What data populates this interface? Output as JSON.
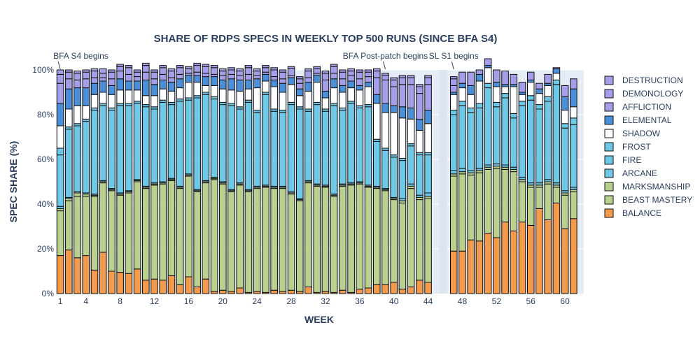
{
  "chart_data": {
    "type": "bar",
    "stacked": true,
    "title": "SHARE OF RDPS SPECS IN WEEKLY TOP 500 RUNS (SINCE BFA S4)",
    "xlabel": "WEEK",
    "ylabel": "SPEC SHARE (%)",
    "ylim": [
      0,
      100
    ],
    "y_tick_labels": [
      "0%",
      "20%",
      "40%",
      "60%",
      "80%",
      "100%"
    ],
    "x_tick_values": [
      1,
      4,
      8,
      12,
      16,
      20,
      24,
      28,
      32,
      36,
      40,
      44,
      48,
      52,
      56,
      60
    ],
    "x_tick_labels": [
      "1",
      "4",
      "8",
      "12",
      "16",
      "20",
      "24",
      "28",
      "32",
      "36",
      "40",
      "44",
      "48",
      "52",
      "56",
      "60"
    ],
    "x": [
      1,
      2,
      3,
      4,
      5,
      6,
      7,
      8,
      9,
      10,
      11,
      12,
      13,
      14,
      15,
      16,
      17,
      18,
      19,
      20,
      21,
      22,
      23,
      24,
      25,
      26,
      27,
      28,
      29,
      30,
      31,
      32,
      33,
      34,
      35,
      36,
      37,
      38,
      39,
      40,
      41,
      42,
      43,
      44,
      47,
      48,
      49,
      50,
      51,
      52,
      53,
      54,
      55,
      56,
      57,
      58,
      59,
      60,
      61
    ],
    "grid": true,
    "legend_position": "right",
    "annotations": [
      {
        "text": "BFA S4 begins",
        "x": 1
      },
      {
        "text": "BFA Post-patch begins",
        "x": 39
      },
      {
        "text": "SL S1 begins",
        "x": 47
      }
    ],
    "series": [
      {
        "name": "BALANCE",
        "color": "#f39a4d",
        "values": [
          17,
          19.5,
          16,
          17,
          10.5,
          18.5,
          10,
          9.5,
          9,
          11,
          6,
          6.5,
          6,
          8,
          4,
          7.5,
          3,
          6.5,
          1,
          1.5,
          1,
          2.5,
          0.5,
          1,
          0.5,
          1.5,
          1,
          1.5,
          1,
          3,
          0.5,
          1,
          0.5,
          1.5,
          0.5,
          2,
          2.5,
          4,
          4,
          5,
          2,
          3,
          6,
          5,
          19,
          19,
          24,
          23.5,
          27,
          25,
          32,
          28,
          32,
          30.5,
          38,
          33,
          40.5,
          29,
          33.5
        ]
      },
      {
        "name": "BEAST MASTERY",
        "color": "#b9d08f",
        "values": [
          20,
          22,
          27.5,
          26.5,
          33,
          31,
          36,
          34.5,
          36,
          39,
          41,
          42,
          43,
          42.5,
          43,
          45,
          42.5,
          43,
          50,
          47.5,
          44.5,
          46,
          45,
          46,
          47,
          45.5,
          46,
          43,
          40.5,
          46.5,
          47.5,
          46.5,
          43,
          46.5,
          48,
          47,
          45,
          43,
          42,
          37,
          38.5,
          44,
          36,
          37.5,
          33.5,
          34.5,
          29,
          30.5,
          28.5,
          31,
          23.5,
          26.5,
          18,
          17,
          9.5,
          16,
          7,
          15,
          12
        ]
      },
      {
        "name": "MARKSMANSHIP",
        "color": "#b9d08f",
        "values": [
          1,
          1,
          1.5,
          1,
          0.5,
          0.5,
          0.5,
          0.5,
          0.5,
          0.5,
          0.5,
          0.5,
          0.5,
          0.5,
          0.5,
          0.5,
          0.5,
          0.5,
          0.5,
          0.5,
          0.5,
          0.5,
          0.5,
          0.5,
          0.5,
          0.5,
          0.5,
          0.5,
          0.5,
          0.5,
          0.5,
          0.5,
          0.5,
          0.5,
          0.5,
          0.5,
          0.5,
          0.5,
          0.5,
          0.5,
          1,
          1,
          1,
          1,
          1,
          1,
          1,
          1,
          1,
          1,
          1,
          1,
          1,
          1,
          1,
          1,
          1,
          1,
          1
        ]
      },
      {
        "name": "ARCANE",
        "color": "#6fc8e6",
        "values": [
          1,
          0.5,
          0.5,
          0.5,
          0.5,
          0.5,
          0.5,
          0.5,
          0.5,
          0.5,
          0.5,
          0.5,
          0.5,
          0.5,
          0.5,
          0.5,
          0.5,
          0.5,
          0.5,
          0.5,
          0.5,
          0.5,
          0.5,
          0.5,
          0.5,
          0.5,
          0.5,
          0.5,
          0.5,
          0.5,
          0.5,
          0.5,
          0.5,
          0.5,
          0.5,
          0.5,
          0.5,
          0.5,
          0.5,
          0.5,
          1,
          1,
          1,
          1.5,
          1.5,
          1.5,
          1,
          1,
          1,
          1,
          1,
          1,
          1,
          1,
          1,
          1,
          1,
          1,
          1
        ]
      },
      {
        "name": "FIRE",
        "color": "#6fc8e6",
        "values": [
          23,
          30.5,
          29.5,
          32,
          37.5,
          33.5,
          35,
          39,
          38,
          34,
          35.5,
          33,
          35.5,
          33,
          38,
          33,
          41,
          38.5,
          35,
          34.5,
          37.5,
          33,
          39,
          33,
          40.5,
          33.5,
          33,
          39,
          40,
          31,
          35.5,
          33,
          39.5,
          33,
          35.5,
          33,
          35,
          20,
          17,
          18,
          17,
          17,
          18,
          17,
          25,
          28,
          26,
          27,
          34.5,
          25.5,
          30,
          22,
          32,
          37,
          33,
          35,
          44,
          28,
          28
        ]
      },
      {
        "name": "FROST",
        "color": "#6fc8e6",
        "values": [
          3,
          1,
          1,
          1,
          1,
          1,
          1,
          1,
          1,
          1,
          1,
          1,
          1,
          1,
          1,
          1,
          1,
          1,
          1,
          1,
          1,
          1,
          1,
          1,
          1,
          1,
          1,
          1,
          1,
          1,
          1,
          1,
          1,
          1,
          1,
          1,
          1,
          1,
          1,
          1,
          1,
          1,
          1,
          1,
          2,
          2,
          2,
          2,
          2,
          2,
          2,
          2,
          2,
          2,
          2,
          2,
          2,
          2,
          3
        ]
      },
      {
        "name": "SHADOW",
        "color": "#ffffff",
        "values": [
          10,
          8,
          8,
          6,
          6,
          5,
          6,
          6,
          6,
          5,
          4,
          5,
          5,
          5,
          5,
          7,
          6,
          3,
          5,
          6,
          6,
          7,
          5,
          10,
          5,
          10,
          8,
          8,
          5,
          8,
          9,
          5,
          7,
          7,
          6,
          7,
          8,
          16,
          16,
          19,
          18,
          11,
          10,
          13,
          7,
          6,
          6,
          10,
          7,
          7,
          3,
          12,
          3,
          6,
          5,
          5,
          3,
          6,
          5
        ]
      },
      {
        "name": "ELEMENTAL",
        "color": "#4a8fd8",
        "values": [
          10,
          9,
          8,
          8,
          5,
          5,
          4,
          5,
          4,
          4,
          7,
          5,
          4,
          4,
          4,
          3,
          3,
          4,
          4,
          4,
          5,
          5,
          4,
          4,
          3,
          3,
          4,
          3,
          3,
          4,
          3,
          3,
          4,
          3,
          3,
          2,
          2,
          4,
          4,
          3,
          5,
          5,
          5,
          6,
          1,
          2,
          4,
          3,
          1,
          2,
          1,
          1,
          1,
          1,
          2,
          1,
          2,
          6,
          8
        ]
      },
      {
        "name": "AFFLICTION",
        "color": "#a59ee8",
        "values": [
          9,
          4.5,
          3.5,
          4,
          2.5,
          1.5,
          3,
          3.5,
          3,
          2,
          3.5,
          2.5,
          2.5,
          2,
          2,
          1,
          1.5,
          1.5,
          1,
          2,
          2,
          2,
          2.5,
          1.5,
          1,
          1.5,
          2,
          1,
          2.5,
          2,
          1,
          5,
          2.5,
          3,
          2.5,
          3,
          2.5,
          7.5,
          10.5,
          8.5,
          10,
          10.5,
          11.5,
          11.5,
          3,
          5,
          6,
          2,
          3,
          5.5,
          6,
          4.5,
          4.5,
          3.5,
          2.5,
          4,
          0.5,
          5,
          4.5
        ]
      },
      {
        "name": "DEMONOLOGY",
        "color": "#a59ee8",
        "values": [
          4,
          3,
          3,
          3,
          3,
          2,
          3,
          2,
          3,
          2,
          3,
          3,
          3,
          3,
          3,
          2,
          3,
          3,
          3,
          2,
          2,
          2,
          3,
          2,
          2,
          3,
          3,
          3,
          2,
          3,
          2,
          3,
          3,
          3,
          2,
          3,
          2,
          3,
          2,
          3,
          3,
          3,
          3,
          3,
          3,
          0,
          0,
          0,
          0,
          0,
          0,
          0,
          0,
          0,
          0,
          0,
          0,
          0,
          0
        ]
      },
      {
        "name": "DESTRUCTION",
        "color": "#a59ee8",
        "values": [
          2,
          1,
          1,
          1,
          1,
          2,
          1,
          1,
          1,
          1,
          1,
          1,
          1,
          1,
          1,
          1,
          1,
          1,
          1,
          1,
          1,
          1,
          1,
          1,
          1,
          1,
          1,
          1,
          1,
          1,
          1,
          1,
          1,
          1,
          1,
          1,
          1,
          1,
          1,
          1,
          1,
          1,
          1,
          1,
          1,
          0,
          0,
          0,
          0,
          0,
          0,
          0,
          0,
          0,
          0,
          0,
          0,
          0,
          0
        ]
      }
    ]
  }
}
